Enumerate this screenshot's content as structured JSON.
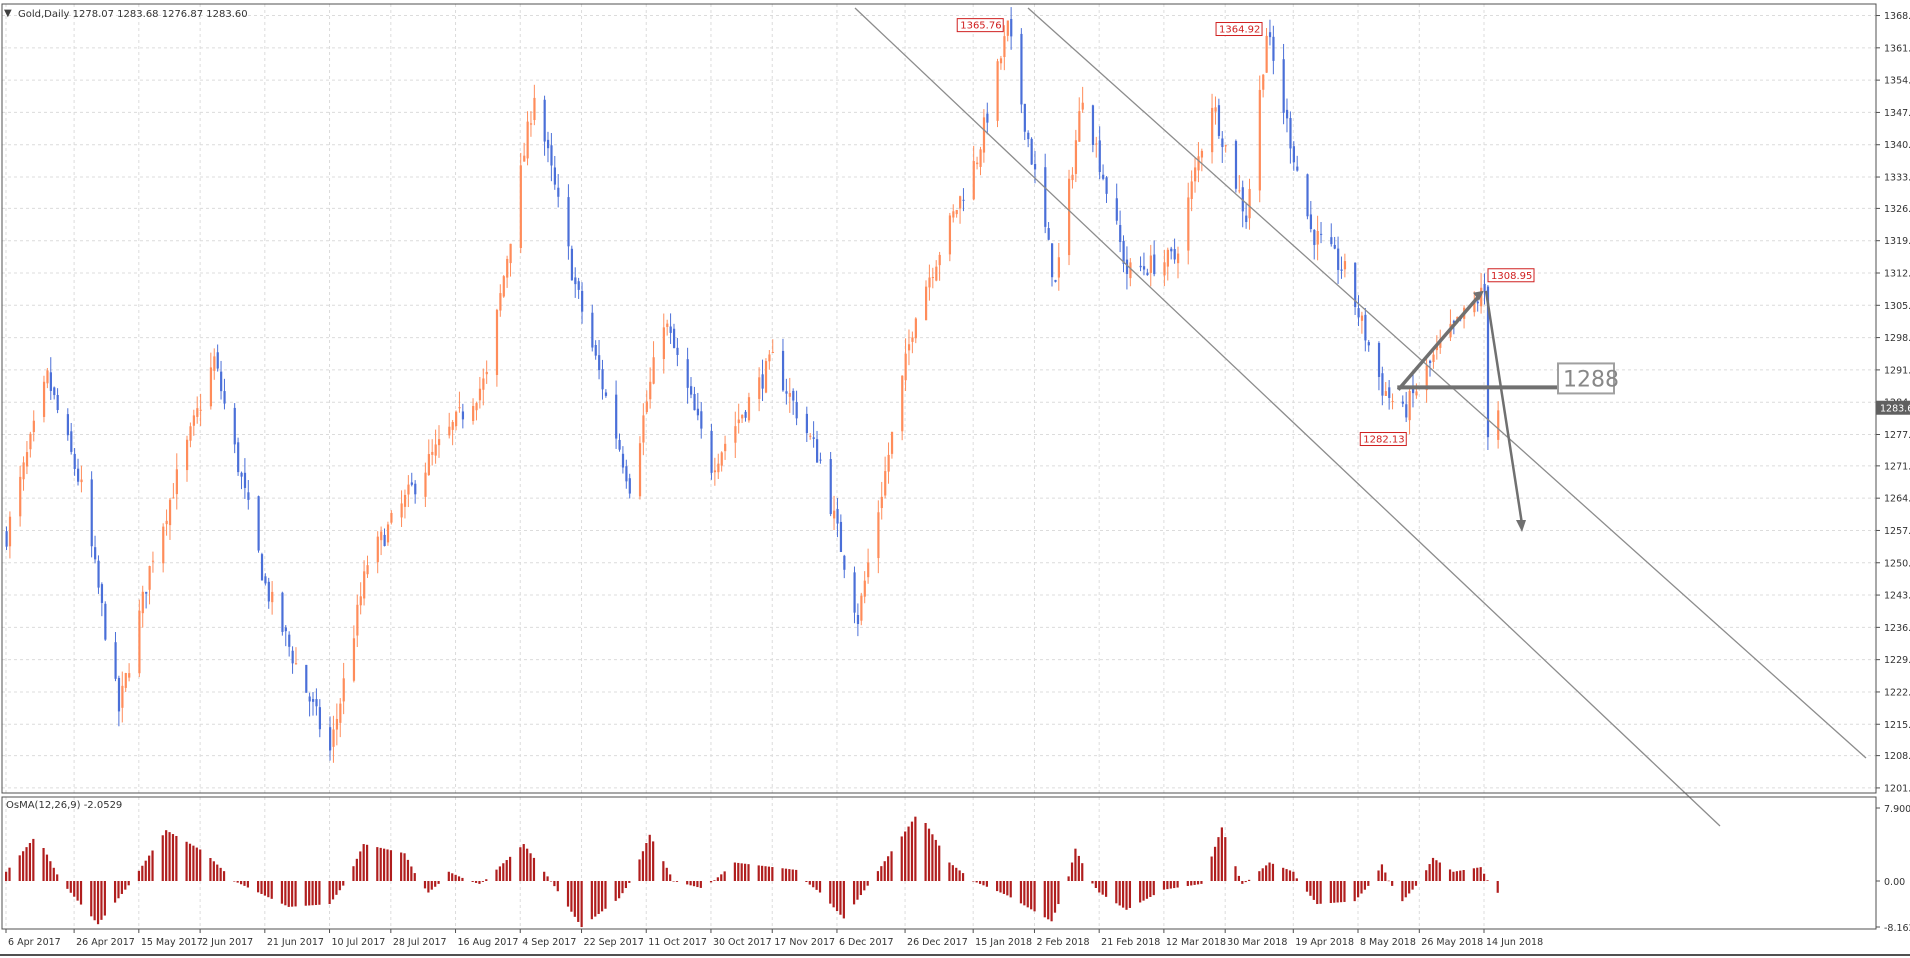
{
  "main_header": "Gold,Daily  1278.07 1283.68 1276.87 1283.60",
  "osc_header": "OsMA(12,26,9) -2.0529",
  "colors": {
    "bull": "#FF8C5A",
    "bear": "#4A6FD8",
    "osc": "#B01E1E",
    "grid": "#DCDCDC",
    "line": "#8C8C8C"
  },
  "chart_data": {
    "type": "candlestick",
    "title": "Gold,Daily",
    "ohlc_current": {
      "open": 1278.07,
      "high": 1283.68,
      "low": 1276.87,
      "close": 1283.6
    },
    "price_ticks": [
      "1368.60",
      "1361.60",
      "1354.60",
      "1347.60",
      "1340.60",
      "1333.60",
      "1326.80",
      "1319.80",
      "1312.80",
      "1305.80",
      "1298.80",
      "1291.80",
      "1284.80",
      "1277.80",
      "1271.00",
      "1264.00",
      "1257.00",
      "1250.00",
      "1243.00",
      "1236.00",
      "1229.00",
      "1222.00",
      "1215.00",
      "1208.20",
      "1201.20"
    ],
    "current_price_label": "1283.60",
    "date_ticks": [
      "6 Apr 2017",
      "26 Apr 2017",
      "15 May 2017",
      "2 Jun 2017",
      "21 Jun 2017",
      "10 Jul 2017",
      "28 Jul 2017",
      "16 Aug 2017",
      "4 Sep 2017",
      "22 Sep 2017",
      "11 Oct 2017",
      "30 Oct 2017",
      "17 Nov 2017",
      "6 Dec 2017",
      "26 Dec 2017",
      "15 Jan 2018",
      "2 Feb 2018",
      "21 Feb 2018",
      "12 Mar 2018",
      "30 Mar 2018",
      "19 Apr 2018",
      "8 May 2018",
      "26 May 2018",
      "14 Jun 2018"
    ],
    "price_points": [
      {
        "date": "6 Apr 2017",
        "price": 1256
      },
      {
        "date": "18 Apr 2017",
        "price": 1290
      },
      {
        "date": "28 Apr 2017",
        "price": 1266
      },
      {
        "date": "9 May 2017",
        "price": 1218
      },
      {
        "date": "19 May 2017",
        "price": 1252
      },
      {
        "date": "6 Jun 2017",
        "price": 1294
      },
      {
        "date": "21 Jun 2017",
        "price": 1245
      },
      {
        "date": "10 Jul 2017",
        "price": 1209
      },
      {
        "date": "21 Jul 2017",
        "price": 1250
      },
      {
        "date": "8 Aug 2017",
        "price": 1272
      },
      {
        "date": "25 Aug 2017",
        "price": 1290
      },
      {
        "date": "8 Sep 2017",
        "price": 1352
      },
      {
        "date": "20 Sep 2017",
        "price": 1310
      },
      {
        "date": "6 Oct 2017",
        "price": 1267
      },
      {
        "date": "16 Oct 2017",
        "price": 1303
      },
      {
        "date": "30 Oct 2017",
        "price": 1271
      },
      {
        "date": "17 Nov 2017",
        "price": 1294
      },
      {
        "date": "1 Dec 2017",
        "price": 1272
      },
      {
        "date": "12 Dec 2017",
        "price": 1238
      },
      {
        "date": "29 Dec 2017",
        "price": 1305
      },
      {
        "date": "16 Jan 2018",
        "price": 1338
      },
      {
        "date": "25 Jan 2018",
        "price": 1365.76
      },
      {
        "date": "8 Feb 2018",
        "price": 1310
      },
      {
        "date": "16 Feb 2018",
        "price": 1352
      },
      {
        "date": "1 Mar 2018",
        "price": 1313
      },
      {
        "date": "15 Mar 2018",
        "price": 1316
      },
      {
        "date": "26 Mar 2018",
        "price": 1350
      },
      {
        "date": "5 Apr 2018",
        "price": 1325
      },
      {
        "date": "11 Apr 2018",
        "price": 1364.92
      },
      {
        "date": "24 Apr 2018",
        "price": 1322
      },
      {
        "date": "4 May 2018",
        "price": 1313
      },
      {
        "date": "15 May 2018",
        "price": 1288
      },
      {
        "date": "21 May 2018",
        "price": 1282.13
      },
      {
        "date": "1 Jun 2018",
        "price": 1297
      },
      {
        "date": "14 Jun 2018",
        "price": 1308.95
      },
      {
        "date": "15 Jun 2018",
        "price": 1279
      },
      {
        "date": "18 Jun 2018",
        "price": 1283.6
      }
    ],
    "annotations": [
      {
        "label": "1365.76",
        "date": "25 Jan 2018",
        "price": 1365.76
      },
      {
        "label": "1364.92",
        "date": "11 Apr 2018",
        "price": 1364.92
      },
      {
        "label": "1308.95",
        "date": "14 Jun 2018",
        "price": 1308.95
      },
      {
        "label": "1282.13",
        "date": "21 May 2018",
        "price": 1282.13
      }
    ],
    "level_label": "1288",
    "level_price": 1288,
    "oscillator": {
      "name": "OsMA(12,26,9)",
      "value": -2.0529,
      "ticks": [
        "7.9009",
        "0.00",
        "-8.1623"
      ],
      "ylim": [
        -8.1623,
        7.9009
      ],
      "points": [
        {
          "date": "6 Apr 2017",
          "value": 1
        },
        {
          "date": "15 Apr 2017",
          "value": 5
        },
        {
          "date": "22 Apr 2017",
          "value": 0
        },
        {
          "date": "3 May 2017",
          "value": -7.5
        },
        {
          "date": "13 May 2017",
          "value": 0
        },
        {
          "date": "23 May 2017",
          "value": 5.5
        },
        {
          "date": "3 Jun 2017",
          "value": 3.2
        },
        {
          "date": "12 Jun 2017",
          "value": 0
        },
        {
          "date": "28 Jun 2017",
          "value": -4.5
        },
        {
          "date": "10 Jul 2017",
          "value": -4
        },
        {
          "date": "20 Jul 2017",
          "value": 4
        },
        {
          "date": "1 Aug 2017",
          "value": 3
        },
        {
          "date": "8 Aug 2017",
          "value": -2
        },
        {
          "date": "14 Aug 2017",
          "value": 1
        },
        {
          "date": "23 Aug 2017",
          "value": -0.5
        },
        {
          "date": "5 Sep 2017",
          "value": 4
        },
        {
          "date": "13 Sep 2017",
          "value": 0
        },
        {
          "date": "22 Sep 2017",
          "value": -8
        },
        {
          "date": "3 Oct 2017",
          "value": -3
        },
        {
          "date": "12 Oct 2017",
          "value": 5
        },
        {
          "date": "19 Oct 2017",
          "value": 0
        },
        {
          "date": "27 Oct 2017",
          "value": -1.2
        },
        {
          "date": "6 Nov 2017",
          "value": 2
        },
        {
          "date": "24 Nov 2017",
          "value": 1.2
        },
        {
          "date": "1 Dec 2017",
          "value": -2
        },
        {
          "date": "8 Dec 2017",
          "value": -6.5
        },
        {
          "date": "16 Dec 2017",
          "value": 0
        },
        {
          "date": "30 Dec 2017",
          "value": 7.5
        },
        {
          "date": "8 Jan 2018",
          "value": 2
        },
        {
          "date": "15 Jan 2018",
          "value": 0
        },
        {
          "date": "25 Jan 2018",
          "value": -2.5
        },
        {
          "date": "7 Feb 2018",
          "value": -7
        },
        {
          "date": "14 Feb 2018",
          "value": 3.5
        },
        {
          "date": "21 Feb 2018",
          "value": -2
        },
        {
          "date": "1 Mar 2018",
          "value": -5
        },
        {
          "date": "12 Mar 2018",
          "value": -1.5
        },
        {
          "date": "23 Mar 2018",
          "value": -0.5
        },
        {
          "date": "29 Mar 2018",
          "value": 5.8
        },
        {
          "date": "4 Apr 2018",
          "value": -0.5
        },
        {
          "date": "12 Apr 2018",
          "value": 2
        },
        {
          "date": "19 Apr 2018",
          "value": 1
        },
        {
          "date": "26 Apr 2018",
          "value": -4
        },
        {
          "date": "7 May 2018",
          "value": -3.5
        },
        {
          "date": "15 May 2018",
          "value": 1.8
        },
        {
          "date": "21 May 2018",
          "value": -3.5
        },
        {
          "date": "30 May 2018",
          "value": 2.5
        },
        {
          "date": "5 Jun 2018",
          "value": 1
        },
        {
          "date": "13 Jun 2018",
          "value": 1.5
        },
        {
          "date": "18 Jun 2018",
          "value": -2.05
        }
      ]
    }
  }
}
